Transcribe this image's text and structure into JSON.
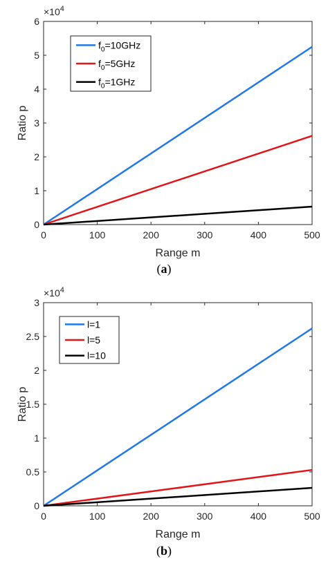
{
  "chart_data": [
    {
      "type": "line",
      "panel_label": "(a)",
      "xlabel": "Range m",
      "ylabel": "Ratio p",
      "y_multiplier_base": "×10",
      "y_multiplier_exponent": "4",
      "xlim": [
        0,
        500
      ],
      "ylim": [
        0,
        6
      ],
      "xticks": [
        0,
        100,
        200,
        300,
        400,
        500
      ],
      "yticks": [
        0,
        1,
        2,
        3,
        4,
        5,
        6
      ],
      "legend_position": "top-left",
      "series": [
        {
          "name_main": "f",
          "name_sub": "0",
          "name_rest": "=10GHz",
          "color": "#1f77e8",
          "x": [
            0,
            500
          ],
          "y": [
            0,
            5.25
          ]
        },
        {
          "name_main": "f",
          "name_sub": "0",
          "name_rest": "=5GHz",
          "color": "#e0151a",
          "x": [
            0,
            500
          ],
          "y": [
            0,
            2.62
          ]
        },
        {
          "name_main": "f",
          "name_sub": "0",
          "name_rest": "=1GHz",
          "color": "#000000",
          "x": [
            0,
            500
          ],
          "y": [
            0,
            0.53
          ]
        }
      ]
    },
    {
      "type": "line",
      "panel_label": "(b)",
      "xlabel": "Range m",
      "ylabel": "Ratio p",
      "y_multiplier_base": "×10",
      "y_multiplier_exponent": "4",
      "xlim": [
        0,
        500
      ],
      "ylim": [
        0,
        3
      ],
      "xticks": [
        0,
        100,
        200,
        300,
        400,
        500
      ],
      "yticks": [
        0,
        0.5,
        1,
        1.5,
        2,
        2.5,
        3
      ],
      "legend_position": "top-left",
      "series": [
        {
          "name_main": "l=1",
          "name_sub": "",
          "name_rest": "",
          "color": "#1f77e8",
          "x": [
            0,
            500
          ],
          "y": [
            0,
            2.62
          ]
        },
        {
          "name_main": "l=5",
          "name_sub": "",
          "name_rest": "",
          "color": "#e0151a",
          "x": [
            0,
            500
          ],
          "y": [
            0,
            0.53
          ]
        },
        {
          "name_main": "l=10",
          "name_sub": "",
          "name_rest": "",
          "color": "#000000",
          "x": [
            0,
            500
          ],
          "y": [
            0,
            0.265
          ]
        }
      ]
    }
  ]
}
